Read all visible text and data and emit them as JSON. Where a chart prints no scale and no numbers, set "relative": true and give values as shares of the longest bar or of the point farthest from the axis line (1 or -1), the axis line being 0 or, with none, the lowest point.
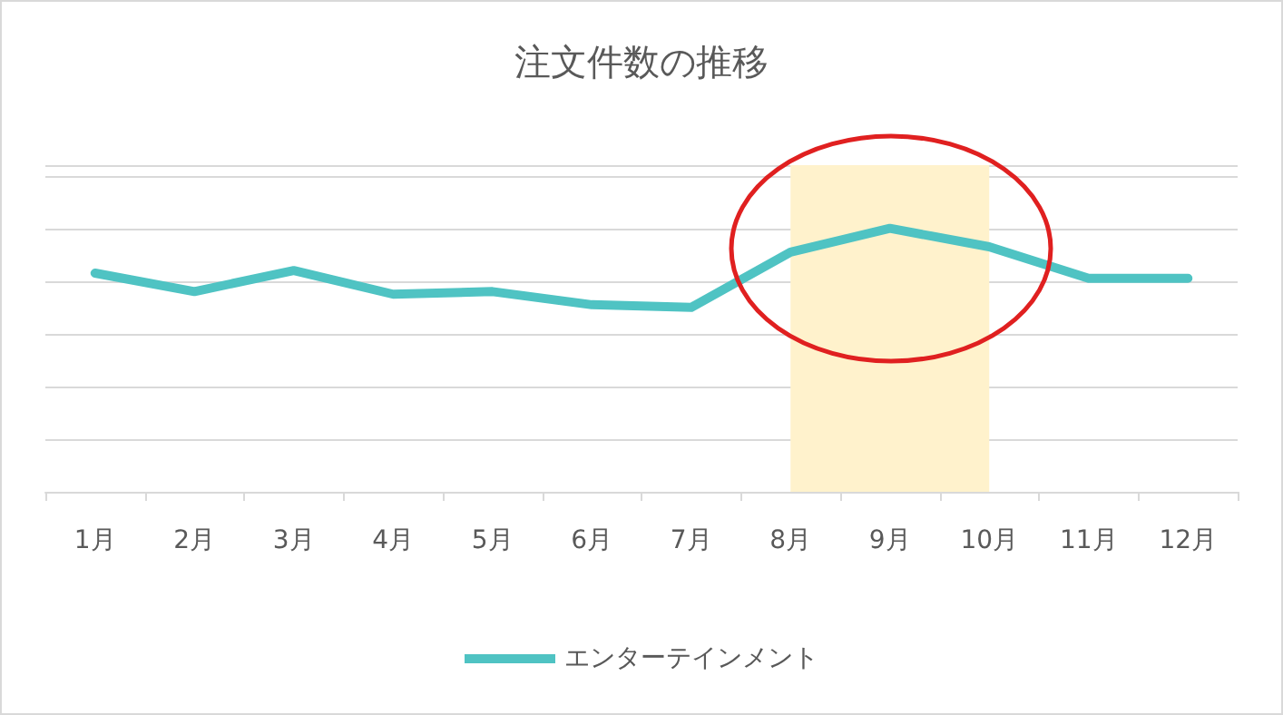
{
  "chart_data": {
    "type": "line",
    "title": "注文件数の推移",
    "categories": [
      "1月",
      "2月",
      "3月",
      "4月",
      "5月",
      "6月",
      "7月",
      "8月",
      "9月",
      "10月",
      "11月",
      "12月"
    ],
    "series": [
      {
        "name": "エンターテインメント",
        "color": "#4fc3c3",
        "values": [
          0.83,
          0.76,
          0.84,
          0.75,
          0.76,
          0.71,
          0.7,
          0.91,
          1,
          0.93,
          0.81,
          0.81
        ]
      }
    ],
    "relative": true,
    "grid": "y",
    "legend": "bottom",
    "marker": "none",
    "line_style": "solid",
    "bands": [
      {
        "axis": "x",
        "from": "8月",
        "to": "10月",
        "color": "#fff2cc"
      }
    ]
  }
}
